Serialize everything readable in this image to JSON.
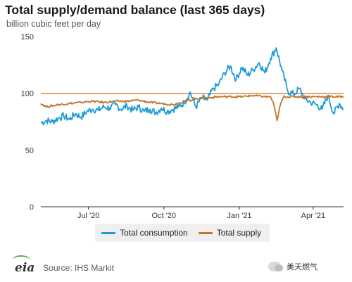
{
  "chart_data": {
    "type": "line",
    "title": "Total supply/demand balance (last 365 days)",
    "ylabel": "billion cubic feet per day",
    "ylim": [
      0,
      150
    ],
    "yticks": [
      0,
      50,
      100,
      150
    ],
    "xlim": [
      "2020-05-04",
      "2021-05-08"
    ],
    "xticks": [
      {
        "label": "Jul '20",
        "date": "2020-07-01"
      },
      {
        "label": "Oct '20",
        "date": "2020-10-01"
      },
      {
        "label": "Jan '21",
        "date": "2021-01-01"
      },
      {
        "label": "Apr '21",
        "date": "2021-04-01"
      }
    ],
    "reference_line": 100,
    "legend_position": "bottom",
    "series": [
      {
        "name": "Total consumption",
        "color": "#1f9bd7",
        "points": [
          [
            "2020-05-04",
            74
          ],
          [
            "2020-05-11",
            76
          ],
          [
            "2020-05-18",
            75
          ],
          [
            "2020-05-25",
            78
          ],
          [
            "2020-06-01",
            80
          ],
          [
            "2020-06-08",
            77
          ],
          [
            "2020-06-15",
            82
          ],
          [
            "2020-06-22",
            79
          ],
          [
            "2020-06-29",
            84
          ],
          [
            "2020-07-06",
            86
          ],
          [
            "2020-07-13",
            85
          ],
          [
            "2020-07-20",
            88
          ],
          [
            "2020-07-27",
            87
          ],
          [
            "2020-08-03",
            90
          ],
          [
            "2020-08-10",
            86
          ],
          [
            "2020-08-17",
            89
          ],
          [
            "2020-08-24",
            85
          ],
          [
            "2020-08-31",
            88
          ],
          [
            "2020-09-07",
            84
          ],
          [
            "2020-09-14",
            86
          ],
          [
            "2020-09-21",
            83
          ],
          [
            "2020-09-28",
            87
          ],
          [
            "2020-10-05",
            84
          ],
          [
            "2020-10-12",
            86
          ],
          [
            "2020-10-19",
            88
          ],
          [
            "2020-10-26",
            92
          ],
          [
            "2020-11-02",
            101
          ],
          [
            "2020-11-09",
            88
          ],
          [
            "2020-11-16",
            96
          ],
          [
            "2020-11-23",
            94
          ],
          [
            "2020-11-30",
            104
          ],
          [
            "2020-12-07",
            108
          ],
          [
            "2020-12-14",
            118
          ],
          [
            "2020-12-21",
            124
          ],
          [
            "2020-12-28",
            112
          ],
          [
            "2021-01-04",
            123
          ],
          [
            "2021-01-11",
            116
          ],
          [
            "2021-01-18",
            121
          ],
          [
            "2021-01-25",
            127
          ],
          [
            "2021-02-01",
            118
          ],
          [
            "2021-02-08",
            131
          ],
          [
            "2021-02-15",
            140
          ],
          [
            "2021-02-22",
            120
          ],
          [
            "2021-03-01",
            102
          ],
          [
            "2021-03-08",
            99
          ],
          [
            "2021-03-15",
            104
          ],
          [
            "2021-03-22",
            95
          ],
          [
            "2021-03-29",
            92
          ],
          [
            "2021-04-05",
            90
          ],
          [
            "2021-04-12",
            86
          ],
          [
            "2021-04-19",
            98
          ],
          [
            "2021-04-26",
            82
          ],
          [
            "2021-05-03",
            91
          ],
          [
            "2021-05-08",
            86
          ]
        ]
      },
      {
        "name": "Total supply",
        "color": "#c0752c",
        "points": [
          [
            "2020-05-04",
            91
          ],
          [
            "2020-05-11",
            88
          ],
          [
            "2020-05-25",
            90
          ],
          [
            "2020-06-08",
            91
          ],
          [
            "2020-06-22",
            92
          ],
          [
            "2020-07-06",
            93
          ],
          [
            "2020-07-20",
            92
          ],
          [
            "2020-08-03",
            93
          ],
          [
            "2020-08-17",
            93
          ],
          [
            "2020-08-31",
            94
          ],
          [
            "2020-09-14",
            92
          ],
          [
            "2020-09-28",
            91
          ],
          [
            "2020-10-12",
            90
          ],
          [
            "2020-10-26",
            93
          ],
          [
            "2020-11-09",
            95
          ],
          [
            "2020-11-23",
            96
          ],
          [
            "2020-12-07",
            97
          ],
          [
            "2020-12-21",
            97
          ],
          [
            "2021-01-04",
            97
          ],
          [
            "2021-01-18",
            98
          ],
          [
            "2021-02-01",
            97
          ],
          [
            "2021-02-08",
            97
          ],
          [
            "2021-02-12",
            90
          ],
          [
            "2021-02-16",
            76
          ],
          [
            "2021-02-20",
            90
          ],
          [
            "2021-02-24",
            97
          ],
          [
            "2021-03-08",
            97
          ],
          [
            "2021-03-22",
            97
          ],
          [
            "2021-04-05",
            97
          ],
          [
            "2021-04-19",
            97
          ],
          [
            "2021-05-08",
            97
          ]
        ]
      }
    ]
  },
  "footer": {
    "logo_text": "eia",
    "source": "Source: IHS Markit",
    "watermark": "美天燃气"
  },
  "colors": {
    "reference_line": "#e07b2a",
    "axis": "#333333",
    "legend_bg": "#efefef"
  }
}
